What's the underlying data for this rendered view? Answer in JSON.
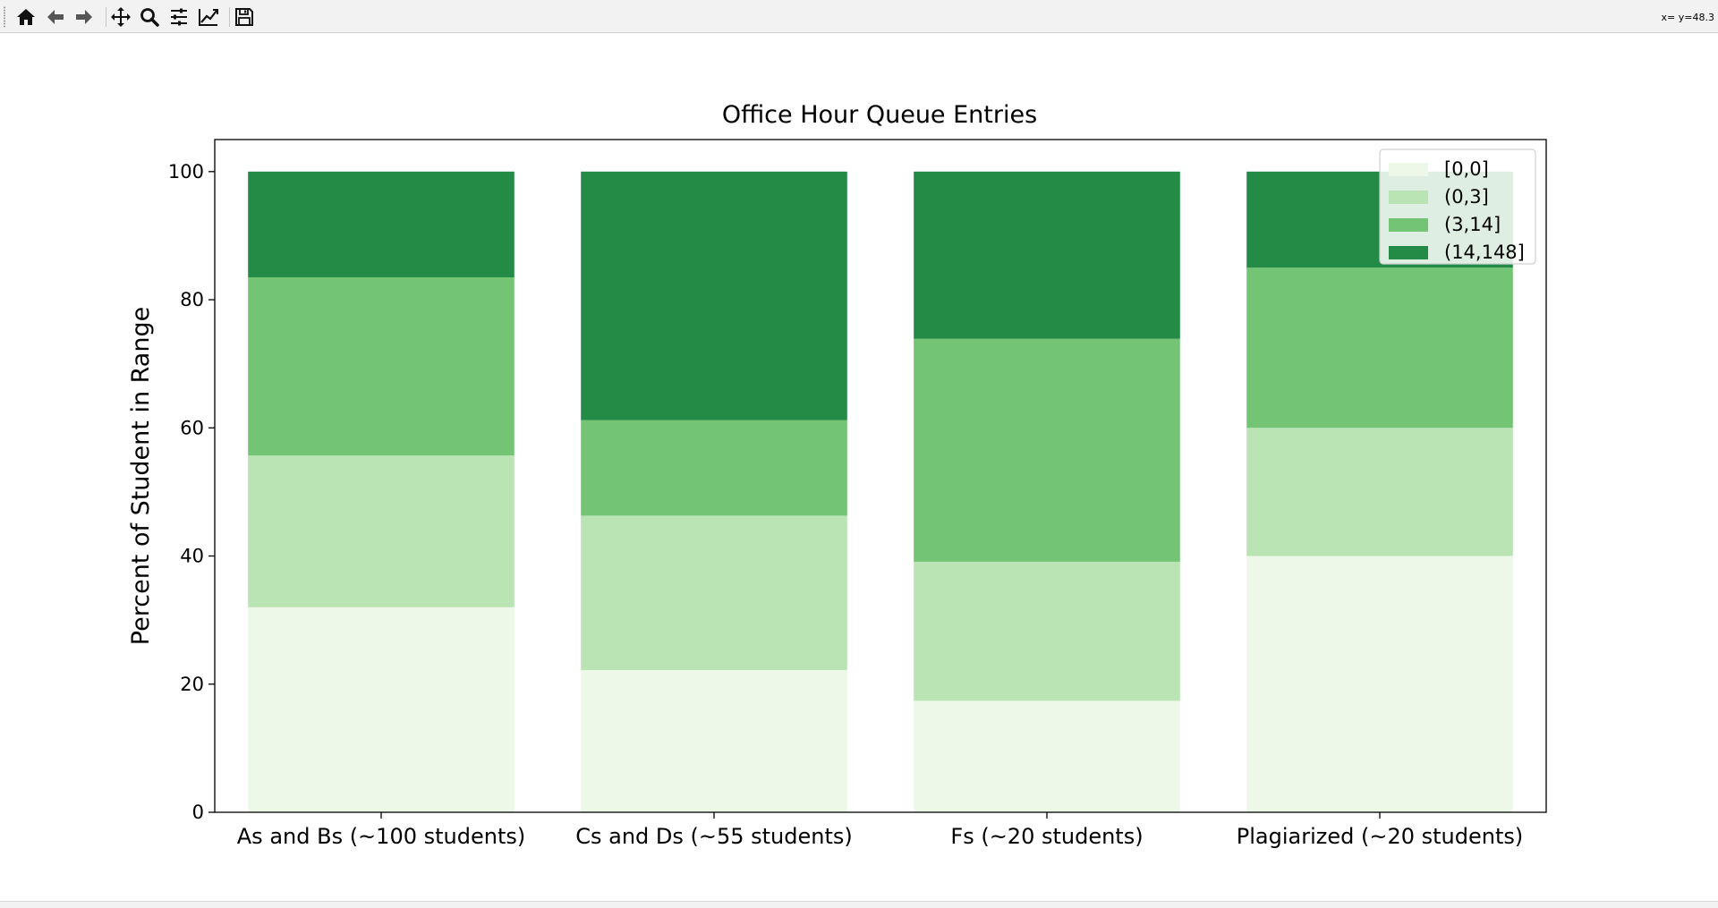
{
  "toolbar": {
    "buttons": [
      {
        "name": "home-button",
        "icon": "home-icon"
      },
      {
        "name": "back-button",
        "icon": "arrow-left-icon"
      },
      {
        "name": "forward-button",
        "icon": "arrow-right-icon"
      },
      {
        "name": "pan-button",
        "icon": "move-icon"
      },
      {
        "name": "zoom-button",
        "icon": "magnifier-icon"
      },
      {
        "name": "configure-subplots-button",
        "icon": "sliders-icon"
      },
      {
        "name": "edit-axis-button",
        "icon": "line-chart-icon"
      },
      {
        "name": "save-button",
        "icon": "floppy-disk-icon"
      }
    ],
    "coordinates": "x= y=48.3"
  },
  "chart_data": {
    "type": "bar",
    "stacked": true,
    "title": "Office Hour Queue Entries",
    "xlabel": "",
    "ylabel": "Percent of Student in Range",
    "ylim": [
      0,
      105
    ],
    "yticks": [
      0,
      20,
      40,
      60,
      80,
      100
    ],
    "grid": false,
    "legend_position": "top-right",
    "categories": [
      "As and Bs (~100 students)",
      "Cs and Ds (~55 students)",
      "Fs (~20 students)",
      "Plagiarized (~20 students)"
    ],
    "series": [
      {
        "name": "[0,0]",
        "color": "#edf8e9",
        "values": [
          32,
          22.2,
          17.4,
          40
        ]
      },
      {
        "name": "(0,3]",
        "color": "#bae4b3",
        "values": [
          23.7,
          24.1,
          21.7,
          20
        ]
      },
      {
        "name": "(3,14]",
        "color": "#74c476",
        "values": [
          27.8,
          14.9,
          34.8,
          25
        ]
      },
      {
        "name": "(14,148]",
        "color": "#238b45",
        "values": [
          16.5,
          38.8,
          26.1,
          15
        ]
      }
    ]
  }
}
